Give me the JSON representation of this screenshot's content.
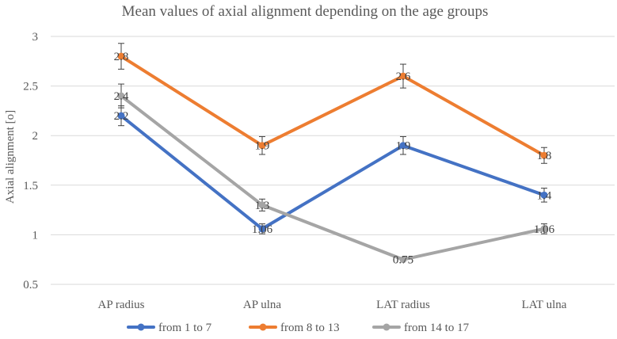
{
  "chart_data": {
    "type": "line",
    "title": "Mean values of axial alignment depending on the age groups",
    "xlabel": "",
    "ylabel": "Axial alignment [o]",
    "categories": [
      "AP radius",
      "AP ulna",
      "LAT radius",
      "LAT ulna"
    ],
    "ylim": [
      0.5,
      3
    ],
    "yticks": [
      0.5,
      1,
      1.5,
      2,
      2.5,
      3
    ],
    "ytick_labels": [
      "0.5",
      "1",
      "1.5",
      "2",
      "2.5",
      "3"
    ],
    "grid": true,
    "legend_position": "bottom",
    "series": [
      {
        "name": "from 1 to 7",
        "color": "#4472c4",
        "values": [
          2.2,
          1.06,
          1.9,
          1.4
        ],
        "labels": [
          "2.2",
          "1.06",
          "1.9",
          "1.4"
        ],
        "errors": [
          0.1,
          0.05,
          0.09,
          0.07
        ]
      },
      {
        "name": "from 8 to 13",
        "color": "#ed7d31",
        "values": [
          2.8,
          1.9,
          2.6,
          1.8
        ],
        "labels": [
          "2.8",
          "1.9",
          "2.6",
          "1.8"
        ],
        "errors": [
          0.13,
          0.09,
          0.12,
          0.08
        ]
      },
      {
        "name": "from 14 to 17",
        "color": "#a5a5a5",
        "values": [
          2.4,
          1.3,
          0.75,
          1.06
        ],
        "labels": [
          "2.4",
          "1.3",
          "0.75",
          "1.06"
        ],
        "errors": [
          0.12,
          0.06,
          0.0,
          0.05
        ]
      }
    ]
  }
}
